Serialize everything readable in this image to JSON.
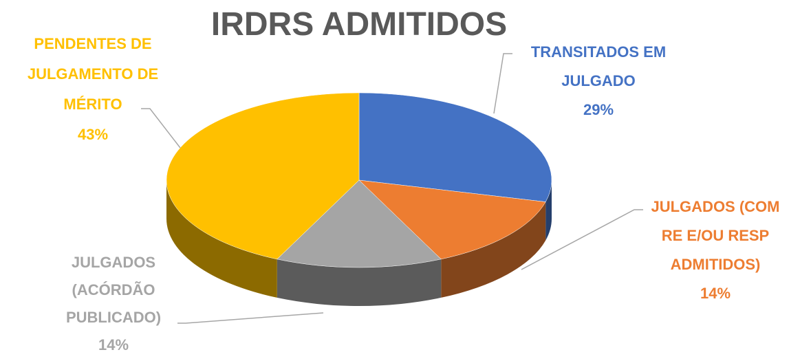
{
  "chart_data": {
    "type": "pie",
    "title": "IRDRS ADMITIDOS",
    "categories": [
      "TRANSITADOS EM JULGADO",
      "JULGADOS (COM RE E/OU RESP ADMITIDOS)",
      "JULGADOS (ACÓRDÃO PUBLICADO)",
      "PENDENTES DE JULGAMENTO DE MÉRITO"
    ],
    "values": [
      29,
      14,
      14,
      43
    ],
    "value_labels": [
      "29%",
      "14%",
      "14%",
      "43%"
    ],
    "colors": [
      "#4472c4",
      "#ed7d31",
      "#a5a5a5",
      "#ffc000"
    ]
  }
}
